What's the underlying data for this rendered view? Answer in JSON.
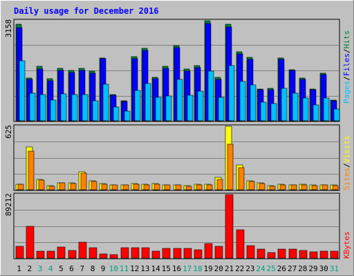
{
  "chart_data": {
    "type": "bar",
    "title": "Daily usage for December 2016",
    "categories": [
      "1",
      "2",
      "3",
      "4",
      "5",
      "6",
      "7",
      "8",
      "9",
      "10",
      "11",
      "12",
      "13",
      "14",
      "15",
      "16",
      "17",
      "18",
      "19",
      "20",
      "21",
      "22",
      "23",
      "24",
      "25",
      "26",
      "27",
      "28",
      "29",
      "30",
      "31"
    ],
    "weekend_days": [
      "3",
      "4",
      "10",
      "11",
      "17",
      "18",
      "24",
      "25",
      "31"
    ],
    "panels": [
      {
        "id": "top",
        "ymax_label": "3158",
        "ylim": [
          0,
          3158
        ],
        "grid": true,
        "series": [
          {
            "name": "Hits",
            "color": "#008040",
            "values": [
              3040,
              1360,
              1710,
              1330,
              1660,
              1590,
              1660,
              1560,
              1990,
              830,
              630,
              2030,
              2280,
              1370,
              1720,
              2380,
              1630,
              1740,
              3158,
              1380,
              3040,
              2180,
              2000,
              1000,
              1020,
              1990,
              1620,
              1340,
              1000,
              1500,
              660
            ]
          },
          {
            "name": "Files",
            "color": "#0000FF",
            "values": [
              2950,
              1300,
              1630,
              1260,
              1600,
              1520,
              1600,
              1510,
              1960,
              810,
              610,
              1970,
              2220,
              1320,
              1650,
              2300,
              1570,
              1670,
              3080,
              1310,
              2970,
              2110,
              1940,
              970,
              980,
              1940,
              1580,
              1300,
              970,
              1460,
              630
            ]
          },
          {
            "name": "Pages",
            "color": "#00C0FF",
            "values": [
              1900,
              880,
              830,
              660,
              840,
              830,
              830,
              640,
              1150,
              440,
              310,
              950,
              1180,
              740,
              790,
              1310,
              810,
              930,
              1570,
              750,
              1740,
              1250,
              1140,
              580,
              540,
              1020,
              870,
              720,
              500,
              710,
              360
            ]
          }
        ]
      },
      {
        "id": "middle",
        "ymax_label": "625",
        "ylim": [
          0,
          625
        ],
        "grid": true,
        "series": [
          {
            "name": "Visits",
            "color": "#FFFF00",
            "values": [
              55,
              420,
              100,
              40,
              70,
              65,
              180,
              85,
              60,
              50,
              45,
              60,
              55,
              60,
              50,
              45,
              40,
              55,
              55,
              125,
              625,
              245,
              90,
              65,
              40,
              55,
              50,
              55,
              45,
              50,
              45
            ]
          },
          {
            "name": "Sites",
            "color": "#FF8000",
            "values": [
              55,
              380,
              95,
              35,
              65,
              60,
              160,
              80,
              55,
              45,
              45,
              55,
              50,
              55,
              50,
              45,
              35,
              50,
              50,
              105,
              450,
              215,
              80,
              60,
              35,
              50,
              45,
              50,
              40,
              45,
              40
            ]
          }
        ]
      },
      {
        "id": "bottom",
        "ymax_label": "89212",
        "ylim": [
          0,
          89212
        ],
        "grid": true,
        "series": [
          {
            "name": "KBytes",
            "color": "#FF0000",
            "values": [
              16500,
              45000,
              10000,
              10000,
              15500,
              11000,
              22000,
              15000,
              6000,
              5000,
              15000,
              15000,
              15000,
              10000,
              13500,
              13500,
              13500,
              11500,
              20500,
              16500,
              89212,
              40000,
              17500,
              13000,
              7500,
              13000,
              13000,
              11000,
              8500,
              10000,
              10000
            ]
          }
        ]
      }
    ],
    "right_labels": {
      "top": [
        {
          "text": "Pages",
          "color": "#00C0FF"
        },
        {
          "text": "Files",
          "color": "#0000FF"
        },
        {
          "text": "Hits",
          "color": "#008040"
        }
      ],
      "middle": [
        {
          "text": "Sites",
          "color": "#FF8000"
        },
        {
          "text": "Visits",
          "color": "#FFFF00"
        }
      ],
      "bottom": [
        {
          "text": "KBytes",
          "color": "#FF0000"
        }
      ]
    }
  },
  "colors": {
    "background": "#C0C0C0",
    "title": "#0000FF",
    "grid": "#808080",
    "weekday_label": "#000000",
    "weekend_label": "#00A080",
    "separator": "#8080A0"
  }
}
